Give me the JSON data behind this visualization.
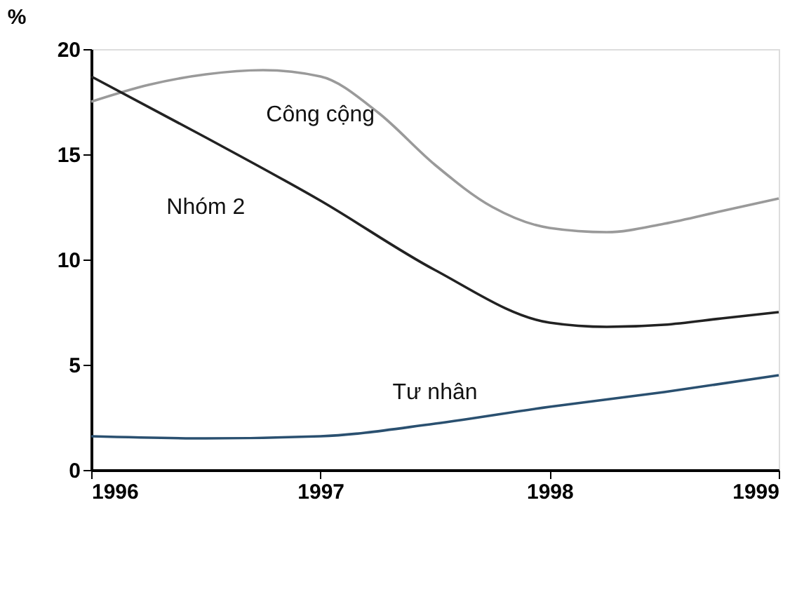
{
  "chart_data": {
    "type": "line",
    "ylabel": "%",
    "xlim": [
      1996,
      1999
    ],
    "xticks": [
      1996,
      1997,
      1998,
      1999
    ],
    "ylim": [
      0,
      20
    ],
    "yticks": [
      0,
      5,
      10,
      15,
      20
    ],
    "grid": false,
    "legend": false,
    "marker": "none",
    "line_style": "solid",
    "series": [
      {
        "name": "Công cộng",
        "color": "#9a9a9a",
        "x": [
          1996,
          1996.25,
          1996.5,
          1996.75,
          1997,
          1997.25,
          1997.5,
          1997.75,
          1998,
          1998.25,
          1998.5,
          1998.75,
          1999
        ],
        "values": [
          17.5,
          18.3,
          18.8,
          19.0,
          18.7,
          17.0,
          14.5,
          12.5,
          11.5,
          11.3,
          11.7,
          12.3,
          12.9
        ]
      },
      {
        "name": "Nhóm 2",
        "color": "#222222",
        "x": [
          1996,
          1996.5,
          1997,
          1997.5,
          1998,
          1998.25,
          1998.5,
          1998.75,
          1999
        ],
        "values": [
          18.7,
          15.8,
          12.8,
          9.5,
          7.0,
          6.8,
          6.9,
          7.2,
          7.5
        ]
      },
      {
        "name": "Tư nhân",
        "color": "#2a5070",
        "x": [
          1996,
          1996.5,
          1997,
          1997.5,
          1998,
          1998.5,
          1999
        ],
        "values": [
          1.6,
          1.5,
          1.6,
          2.2,
          3.0,
          3.7,
          4.5
        ]
      }
    ]
  }
}
